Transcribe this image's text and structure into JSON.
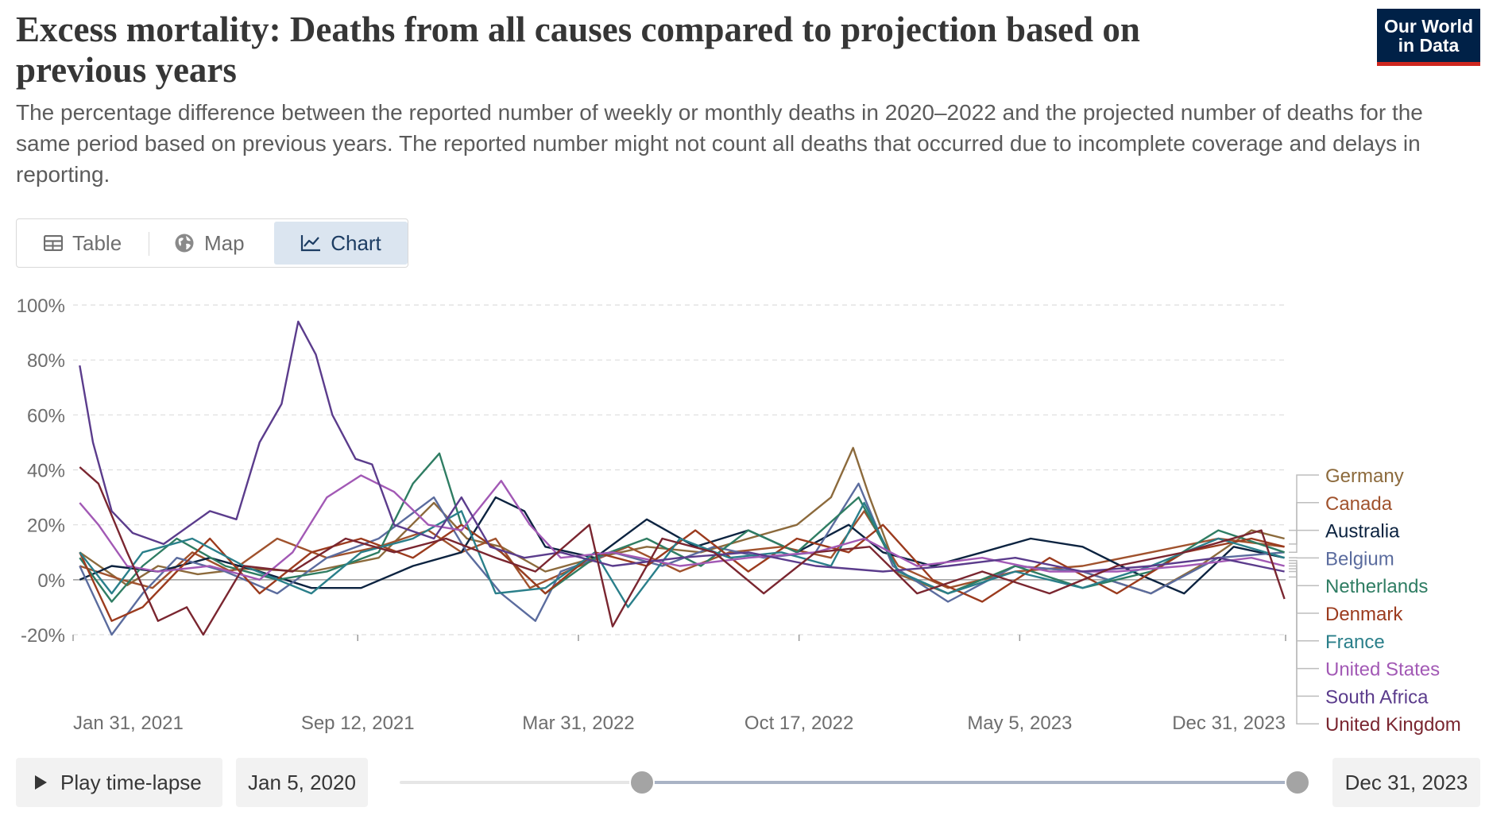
{
  "header": {
    "title": "Excess mortality: Deaths from all causes compared to projection based on previous years",
    "subtitle": "The percentage difference between the reported number of weekly or monthly deaths in 2020–2022 and the projected number of deaths for the same period based on previous years. The reported number might not count all deaths that occurred due to incomplete coverage and delays in reporting.",
    "logo_line1": "Our World",
    "logo_line2": "in Data"
  },
  "tabs": {
    "table": "Table",
    "map": "Map",
    "chart": "Chart"
  },
  "controls": {
    "play_label": "Play time-lapse",
    "start_date": "Jan 5, 2020",
    "end_date": "Dec 31, 2023",
    "range_start_fraction": 0.27,
    "range_end_fraction": 1.0
  },
  "colors": {
    "Germany": "#8c6a3c",
    "Canada": "#a0522d",
    "Australia": "#0c2340",
    "Belgium": "#5b6c9e",
    "Netherlands": "#2f7d63",
    "Denmark": "#9b3b1e",
    "France": "#2a7f8a",
    "United States": "#a259b5",
    "South Africa": "#5b3c8c",
    "United Kingdom": "#7a2630"
  },
  "chart_data": {
    "type": "line",
    "title": "Excess mortality: Deaths from all causes compared to projection based on previous years",
    "xlabel": "",
    "ylabel": "",
    "ylim": [
      -20,
      100
    ],
    "yticks": [
      -20,
      0,
      20,
      40,
      60,
      80,
      100
    ],
    "ytick_labels": [
      "-20%",
      "0%",
      "20%",
      "40%",
      "60%",
      "80%",
      "100%"
    ],
    "xlim": [
      "2020-12-28",
      "2024-01-01"
    ],
    "xticks": [
      "Jan 31, 2021",
      "Sep 12, 2021",
      "Mar 31, 2022",
      "Oct 17, 2022",
      "May 5, 2023",
      "Dec 31, 2023"
    ],
    "grid": true,
    "legend_position": "right",
    "series": [
      {
        "name": "Germany",
        "label_y": 18,
        "x": [
          "2021-01-03",
          "2021-02-15",
          "2021-03-15",
          "2021-04-20",
          "2021-06-01",
          "2021-08-01",
          "2021-10-01",
          "2021-11-20",
          "2021-12-20",
          "2022-01-20",
          "2022-03-01",
          "2022-04-15",
          "2022-06-01",
          "2022-07-20",
          "2022-09-01",
          "2022-10-15",
          "2022-11-15",
          "2022-12-05",
          "2022-12-20",
          "2023-01-15",
          "2023-03-01",
          "2023-05-01",
          "2023-07-01",
          "2023-09-01",
          "2023-10-15",
          "2023-12-01",
          "2023-12-31"
        ],
        "values": [
          10,
          -2,
          5,
          2,
          4,
          3,
          8,
          28,
          15,
          12,
          3,
          8,
          12,
          10,
          15,
          20,
          30,
          48,
          30,
          2,
          -5,
          5,
          3,
          -5,
          5,
          18,
          15
        ]
      },
      {
        "name": "Canada",
        "label_y": 13,
        "x": [
          "2021-01-03",
          "2021-02-10",
          "2021-03-10",
          "2021-04-15",
          "2021-05-20",
          "2021-07-01",
          "2021-08-15",
          "2021-10-01",
          "2021-11-15",
          "2021-12-15",
          "2022-01-15",
          "2022-02-15",
          "2022-04-01",
          "2022-05-15",
          "2022-07-01",
          "2022-08-15",
          "2022-10-01",
          "2022-11-15",
          "2022-12-15",
          "2023-01-15",
          "2023-03-01",
          "2023-05-01",
          "2023-07-01",
          "2023-09-01",
          "2023-11-01",
          "2023-12-31"
        ],
        "values": [
          5,
          0,
          -3,
          10,
          3,
          15,
          8,
          12,
          18,
          10,
          15,
          -3,
          5,
          12,
          3,
          10,
          12,
          8,
          25,
          5,
          -3,
          3,
          5,
          10,
          15,
          12
        ]
      },
      {
        "name": "Australia",
        "label_y": 10,
        "x": [
          "2021-01-03",
          "2021-02-01",
          "2021-03-15",
          "2021-05-01",
          "2021-06-15",
          "2021-08-01",
          "2021-09-15",
          "2021-11-01",
          "2021-12-15",
          "2022-01-15",
          "2022-02-10",
          "2022-03-01",
          "2022-04-15",
          "2022-06-01",
          "2022-07-15",
          "2022-09-01",
          "2022-10-15",
          "2022-12-01",
          "2023-01-01",
          "2023-02-15",
          "2023-04-01",
          "2023-05-15",
          "2023-07-01",
          "2023-08-15",
          "2023-10-01",
          "2023-11-15",
          "2023-12-31"
        ],
        "values": [
          0,
          5,
          3,
          8,
          3,
          -3,
          -3,
          5,
          10,
          30,
          25,
          12,
          8,
          22,
          12,
          18,
          10,
          20,
          10,
          5,
          10,
          15,
          12,
          3,
          -5,
          12,
          8
        ]
      },
      {
        "name": "Belgium",
        "label_y": 8,
        "x": [
          "2021-01-03",
          "2021-02-01",
          "2021-03-01",
          "2021-04-01",
          "2021-05-15",
          "2021-07-01",
          "2021-08-15",
          "2021-10-01",
          "2021-11-20",
          "2021-12-20",
          "2022-01-20",
          "2022-02-20",
          "2022-03-15",
          "2022-05-01",
          "2022-06-15",
          "2022-08-01",
          "2022-09-15",
          "2022-11-01",
          "2022-12-10",
          "2023-01-10",
          "2023-03-01",
          "2023-05-01",
          "2023-07-01",
          "2023-09-01",
          "2023-11-01",
          "2023-12-31"
        ],
        "values": [
          5,
          -20,
          -5,
          8,
          3,
          -5,
          8,
          15,
          30,
          10,
          -5,
          -15,
          3,
          10,
          5,
          12,
          8,
          10,
          35,
          5,
          -8,
          5,
          3,
          -5,
          8,
          10
        ]
      },
      {
        "name": "Netherlands",
        "label_y": 7,
        "x": [
          "2021-01-03",
          "2021-02-01",
          "2021-03-01",
          "2021-04-01",
          "2021-05-15",
          "2021-07-01",
          "2021-08-15",
          "2021-10-01",
          "2021-11-01",
          "2021-11-25",
          "2021-12-15",
          "2022-01-20",
          "2022-03-01",
          "2022-04-15",
          "2022-06-01",
          "2022-07-20",
          "2022-09-01",
          "2022-10-15",
          "2022-12-10",
          "2023-01-15",
          "2023-03-01",
          "2023-05-01",
          "2023-07-01",
          "2023-09-01",
          "2023-11-01",
          "2023-12-31"
        ],
        "values": [
          8,
          -8,
          5,
          15,
          5,
          0,
          3,
          10,
          35,
          46,
          20,
          10,
          -5,
          8,
          15,
          5,
          18,
          10,
          30,
          3,
          -5,
          5,
          -3,
          3,
          18,
          10
        ]
      },
      {
        "name": "Denmark",
        "label_y": 6,
        "x": [
          "2021-01-03",
          "2021-02-01",
          "2021-03-01",
          "2021-04-01",
          "2021-05-01",
          "2021-06-15",
          "2021-08-01",
          "2021-09-15",
          "2021-11-01",
          "2021-12-15",
          "2022-01-20",
          "2022-03-01",
          "2022-04-15",
          "2022-06-01",
          "2022-07-15",
          "2022-09-01",
          "2022-10-15",
          "2022-12-01",
          "2023-01-01",
          "2023-02-15",
          "2023-04-01",
          "2023-06-01",
          "2023-08-01",
          "2023-10-01",
          "2023-12-01",
          "2023-12-31"
        ],
        "values": [
          10,
          -15,
          -10,
          3,
          15,
          -5,
          10,
          15,
          8,
          20,
          10,
          -5,
          10,
          5,
          18,
          3,
          15,
          10,
          20,
          0,
          -8,
          8,
          -5,
          10,
          15,
          12
        ]
      },
      {
        "name": "France",
        "label_y": 5,
        "x": [
          "2021-01-03",
          "2021-02-01",
          "2021-03-01",
          "2021-04-15",
          "2021-06-01",
          "2021-08-01",
          "2021-09-15",
          "2021-11-01",
          "2021-12-15",
          "2022-01-15",
          "2022-03-01",
          "2022-04-15",
          "2022-05-15",
          "2022-07-01",
          "2022-08-15",
          "2022-10-01",
          "2022-11-15",
          "2022-12-15",
          "2023-01-15",
          "2023-03-01",
          "2023-05-01",
          "2023-07-01",
          "2023-09-01",
          "2023-11-01",
          "2023-12-31"
        ],
        "values": [
          10,
          -5,
          10,
          15,
          5,
          -5,
          10,
          15,
          25,
          -5,
          -3,
          10,
          -10,
          15,
          8,
          10,
          5,
          28,
          3,
          -5,
          3,
          -3,
          5,
          15,
          8
        ]
      },
      {
        "name": "United States",
        "label_y": 4,
        "x": [
          "2021-01-03",
          "2021-01-20",
          "2021-02-15",
          "2021-03-15",
          "2021-05-01",
          "2021-06-15",
          "2021-07-15",
          "2021-08-15",
          "2021-09-15",
          "2021-10-15",
          "2021-11-15",
          "2021-12-15",
          "2022-01-20",
          "2022-02-15",
          "2022-03-15",
          "2022-05-01",
          "2022-07-01",
          "2022-09-01",
          "2022-11-01",
          "2022-12-15",
          "2023-02-01",
          "2023-04-01",
          "2023-06-01",
          "2023-08-01",
          "2023-10-01",
          "2023-12-01",
          "2023-12-31"
        ],
        "values": [
          28,
          20,
          5,
          3,
          5,
          0,
          10,
          30,
          38,
          32,
          20,
          18,
          36,
          20,
          8,
          10,
          5,
          8,
          10,
          15,
          5,
          8,
          3,
          3,
          5,
          8,
          5
        ]
      },
      {
        "name": "South Africa",
        "label_y": 3,
        "x": [
          "2021-01-03",
          "2021-01-15",
          "2021-02-01",
          "2021-02-20",
          "2021-03-20",
          "2021-05-01",
          "2021-05-25",
          "2021-06-15",
          "2021-07-05",
          "2021-07-20",
          "2021-08-05",
          "2021-08-20",
          "2021-09-10",
          "2021-09-25",
          "2021-10-15",
          "2021-11-20",
          "2021-12-15",
          "2022-01-10",
          "2022-02-10",
          "2022-03-15",
          "2022-05-01",
          "2022-07-01",
          "2022-09-01",
          "2022-11-01",
          "2023-01-01",
          "2023-03-01",
          "2023-05-01",
          "2023-07-01",
          "2023-09-01",
          "2023-11-01",
          "2023-12-31"
        ],
        "values": [
          78,
          50,
          25,
          17,
          13,
          25,
          22,
          50,
          64,
          94,
          82,
          60,
          44,
          42,
          20,
          15,
          30,
          12,
          8,
          10,
          5,
          8,
          10,
          5,
          3,
          5,
          8,
          3,
          5,
          8,
          3
        ]
      },
      {
        "name": "United Kingdom",
        "label_y": 1,
        "x": [
          "2021-01-03",
          "2021-01-20",
          "2021-02-15",
          "2021-03-15",
          "2021-04-10",
          "2021-04-25",
          "2021-06-01",
          "2021-07-15",
          "2021-09-01",
          "2021-10-15",
          "2021-12-01",
          "2022-01-15",
          "2022-02-20",
          "2022-04-10",
          "2022-05-01",
          "2022-06-15",
          "2022-08-01",
          "2022-09-15",
          "2022-11-01",
          "2022-12-20",
          "2023-02-01",
          "2023-04-01",
          "2023-06-01",
          "2023-08-01",
          "2023-10-01",
          "2023-12-10",
          "2023-12-31"
        ],
        "values": [
          41,
          35,
          10,
          -15,
          -10,
          -20,
          5,
          3,
          15,
          10,
          15,
          8,
          3,
          20,
          -17,
          15,
          10,
          -5,
          10,
          12,
          -5,
          3,
          -5,
          5,
          10,
          18,
          -7
        ]
      }
    ]
  }
}
